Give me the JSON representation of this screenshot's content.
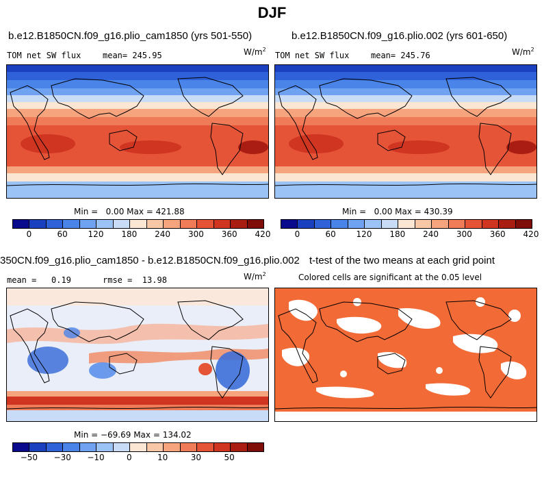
{
  "title": "DJF",
  "panels": {
    "p1": {
      "title": "b.e12.B1850CN.f09_g16.plio_cam1850 (yrs 501-550)",
      "var": "TOM net SW flux",
      "mean_label": "mean= 245.95",
      "unit": "W/m",
      "unit_sup": "2",
      "minmax": "Min =   0.00 Max = 421.88"
    },
    "p2": {
      "title": "b.e12.B1850CN.f09_g16.plio.002 (yrs 601-650)",
      "var": "TOM net SW flux",
      "mean_label": "mean= 245.76",
      "unit": "W/m",
      "unit_sup": "2",
      "minmax": "Min =   0.00 Max = 430.39"
    },
    "p3": {
      "title": "350CN.f09_g16.plio_cam1850 - b.e12.B1850CN.f09_g16.plio.002",
      "mean_label": "mean =   0.19",
      "rmse_label": "rmse =  13.98",
      "unit": "W/m",
      "unit_sup": "2",
      "minmax": "Min = −69.69 Max = 134.02"
    },
    "p4": {
      "title": "t-test of the two means at each grid point",
      "subtitle": "Colored cells are significant at the 0.05 level"
    }
  },
  "colorbars": {
    "abs": {
      "colors": [
        "#0a0a8c",
        "#1a3fbf",
        "#2f62d8",
        "#4a84e8",
        "#6fa2f0",
        "#9cc3f5",
        "#c9dcf7",
        "#fae6d2",
        "#f7c7a6",
        "#f5a47e",
        "#ef7b58",
        "#e65437",
        "#cf3521",
        "#a91d13",
        "#7f0d08"
      ],
      "labels": [
        "0",
        "60",
        "120",
        "180",
        "240",
        "300",
        "360",
        "420"
      ]
    },
    "diff": {
      "colors": [
        "#0a0a8c",
        "#1a3fbf",
        "#2f62d8",
        "#4a84e8",
        "#6fa2f0",
        "#9cc3f5",
        "#c9dcf7",
        "#fae6d2",
        "#f7c7a6",
        "#f5a47e",
        "#ef7b58",
        "#e65437",
        "#cf3521",
        "#a91d13",
        "#7f0d08"
      ],
      "labels": [
        "−50",
        "−30",
        "−10",
        "0",
        "10",
        "30",
        "50"
      ]
    }
  },
  "chart_data": [
    {
      "type": "heatmap",
      "title": "b.e12.B1850CN.f09_g16.plio_cam1850 (yrs 501-550)",
      "variable": "TOM net SW flux",
      "units": "W/m2",
      "mean": 245.95,
      "min": 0.0,
      "max": 421.88,
      "colorbar_ticks": [
        0,
        60,
        120,
        180,
        240,
        300,
        360,
        420
      ]
    },
    {
      "type": "heatmap",
      "title": "b.e12.B1850CN.f09_g16.plio.002 (yrs 601-650)",
      "variable": "TOM net SW flux",
      "units": "W/m2",
      "mean": 245.76,
      "min": 0.0,
      "max": 430.39,
      "colorbar_ticks": [
        0,
        60,
        120,
        180,
        240,
        300,
        360,
        420
      ]
    },
    {
      "type": "heatmap",
      "title": "350CN.f09_g16.plio_cam1850 - b.e12.B1850CN.f09_g16.plio.002",
      "units": "W/m2",
      "mean": 0.19,
      "rmse": 13.98,
      "min": -69.69,
      "max": 134.02,
      "colorbar_ticks": [
        -50,
        -30,
        -10,
        0,
        10,
        30,
        50
      ]
    },
    {
      "type": "heatmap",
      "title": "t-test of the two means at each grid point",
      "subtitle": "Colored cells are significant at the 0.05 level",
      "significant_color": "#f26a35"
    }
  ]
}
